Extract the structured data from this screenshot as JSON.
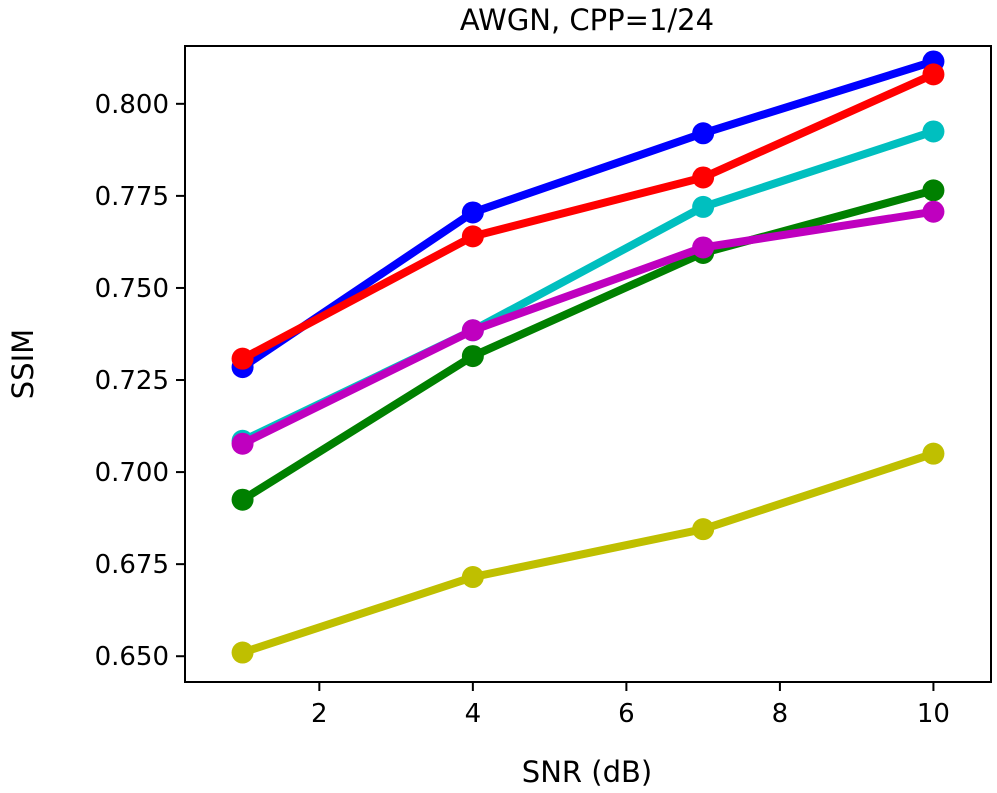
{
  "chart_data": {
    "type": "line",
    "title": "AWGN, CPP=1/24",
    "xlabel": "SNR (dB)",
    "ylabel": "SSIM",
    "x": [
      1,
      4,
      7,
      10
    ],
    "xlim": [
      0.25,
      10.75
    ],
    "ylim": [
      0.643,
      0.8157
    ],
    "xticks": [
      2,
      4,
      6,
      8,
      10
    ],
    "xtick_labels": [
      "2",
      "4",
      "6",
      "8",
      "10"
    ],
    "yticks": [
      0.65,
      0.675,
      0.7,
      0.725,
      0.75,
      0.775,
      0.8
    ],
    "ytick_labels": [
      "0.650",
      "0.675",
      "0.700",
      "0.725",
      "0.750",
      "0.775",
      "0.800"
    ],
    "grid": false,
    "series": [
      {
        "name": "yellow",
        "color": "#bfbf00",
        "values": [
          0.651,
          0.6715,
          0.6845,
          0.705
        ]
      },
      {
        "name": "green",
        "color": "#008000",
        "values": [
          0.6925,
          0.7315,
          0.7595,
          0.7765
        ]
      },
      {
        "name": "cyan",
        "color": "#00bfbf",
        "values": [
          0.7085,
          0.7385,
          0.772,
          0.7925
        ]
      },
      {
        "name": "magenta",
        "color": "#bf00bf",
        "values": [
          0.7077,
          0.7385,
          0.761,
          0.7707
        ]
      },
      {
        "name": "blue",
        "color": "#0000ff",
        "values": [
          0.7285,
          0.7705,
          0.792,
          0.8115
        ]
      },
      {
        "name": "red",
        "color": "#ff0000",
        "values": [
          0.7308,
          0.764,
          0.78,
          0.808
        ]
      }
    ]
  }
}
